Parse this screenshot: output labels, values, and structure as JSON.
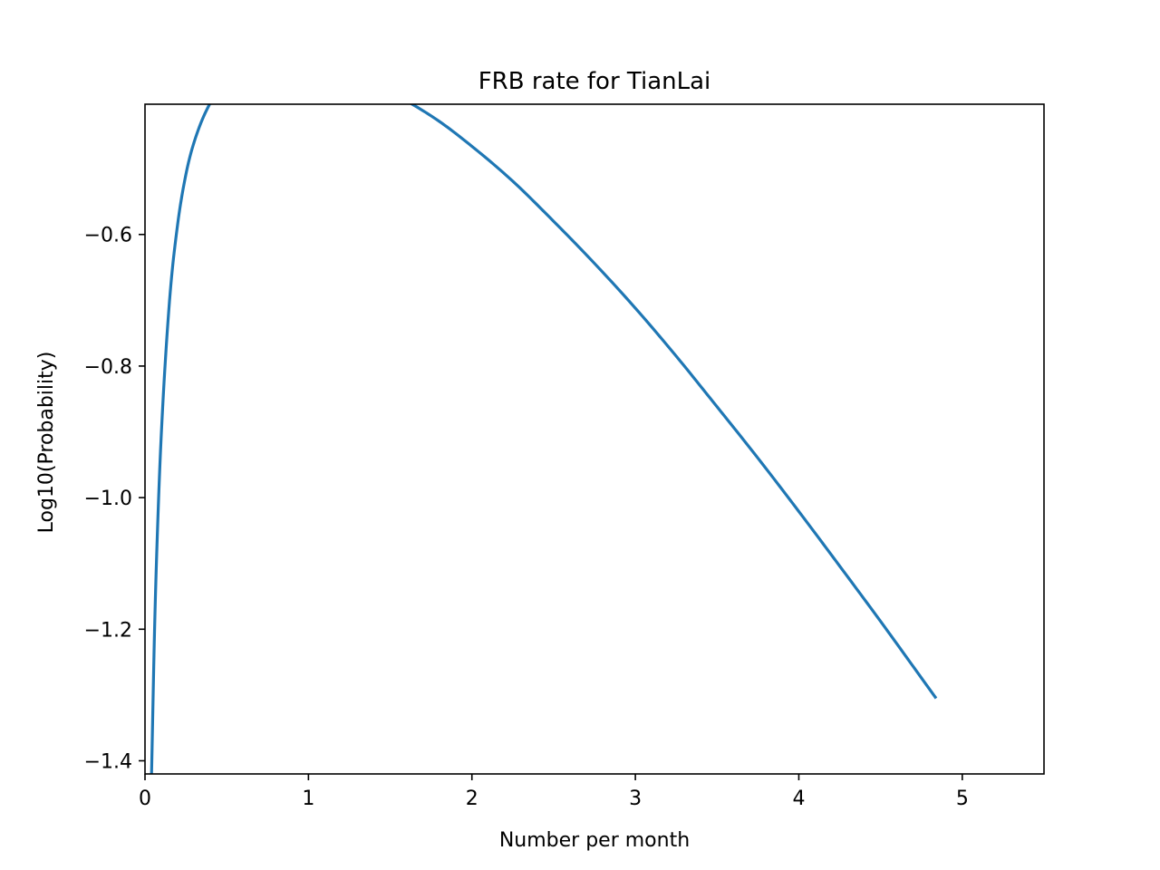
{
  "chart_data": {
    "type": "line",
    "title": "FRB rate for TianLai",
    "xlabel": "Number per month",
    "ylabel": "Log10(Probability)",
    "xlim": [
      0,
      5.5
    ],
    "ylim": [
      -1.42,
      -0.402
    ],
    "x_ticks": [
      0,
      1,
      2,
      3,
      4,
      5
    ],
    "x_tick_labels": [
      "0",
      "1",
      "2",
      "3",
      "4",
      "5"
    ],
    "y_ticks": [
      -1.4,
      -1.2,
      -1.0,
      -0.8,
      -0.6
    ],
    "y_tick_labels": [
      "−1.4",
      "−1.2",
      "−1.0",
      "−0.8",
      "−0.6"
    ],
    "grid": false,
    "legend": null,
    "series": [
      {
        "color": "#1f77b4",
        "x": [
          0.04,
          0.06,
          0.08,
          0.1,
          0.15,
          0.2,
          0.25,
          0.3,
          0.4,
          0.5,
          0.6,
          0.7,
          0.8,
          0.9,
          1.0,
          1.2,
          1.4,
          1.6,
          1.8,
          2.0,
          2.25,
          2.5,
          2.75,
          3.0,
          3.25,
          3.5,
          3.75,
          4.0,
          4.25,
          4.5,
          4.75,
          4.84
        ],
        "y": [
          -1.42,
          -1.186,
          -1.024,
          -0.902,
          -0.701,
          -0.584,
          -0.509,
          -0.46,
          -0.4,
          -0.372,
          -0.358,
          -0.352,
          -0.349,
          -0.348,
          -0.347,
          -0.354,
          -0.371,
          -0.397,
          -0.428,
          -0.466,
          -0.519,
          -0.58,
          -0.644,
          -0.712,
          -0.785,
          -0.862,
          -0.94,
          -1.021,
          -1.104,
          -1.188,
          -1.274,
          -1.305
        ]
      }
    ]
  }
}
